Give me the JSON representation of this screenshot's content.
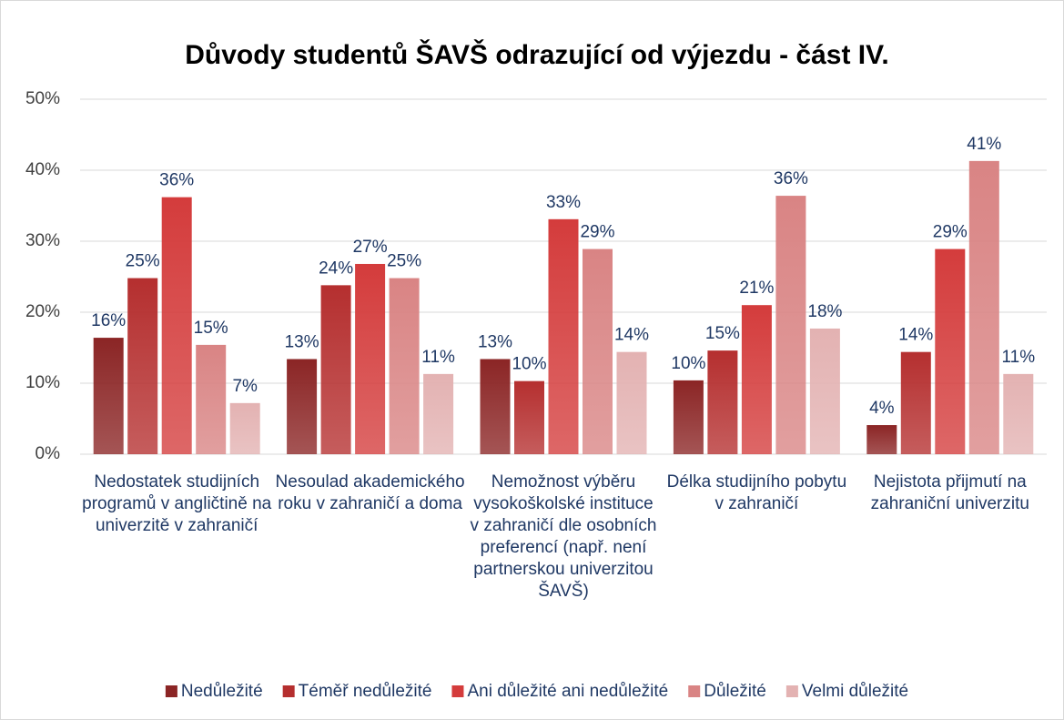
{
  "chart_data": {
    "type": "bar",
    "title": "Důvody studentů ŠAVŠ odrazující od výjezdu - část IV.",
    "categories": [
      "Nedostatek studijních programů v angličtině na univerzitě v zahraničí",
      "Nesoulad akademického roku v zahraničí a doma",
      "Nemožnost výběru vysokoškolské instituce v zahraničí dle osobních preferencí (např. není partnerskou univerzitou ŠAVŠ)",
      "Délka studijního pobytu v zahraničí",
      "Nejistota přijmutí na zahraniční univerzitu"
    ],
    "series": [
      {
        "name": "Nedůležité",
        "color": "#8b2525",
        "values": [
          16.4,
          13.4,
          13.4,
          10.4,
          4.1
        ],
        "value_labels": [
          "16%",
          "13%",
          "13%",
          "10%",
          "4%"
        ]
      },
      {
        "name": "Téměř nedůležité",
        "color": "#b52f2f",
        "values": [
          24.8,
          23.8,
          10.3,
          14.6,
          14.4
        ],
        "value_labels": [
          "25%",
          "24%",
          "10%",
          "15%",
          "14%"
        ]
      },
      {
        "name": "Ani důležité ani nedůležité",
        "color": "#d43c3c",
        "values": [
          36.2,
          26.8,
          33.1,
          21.0,
          28.9
        ],
        "value_labels": [
          "36%",
          "27%",
          "33%",
          "21%",
          "29%"
        ]
      },
      {
        "name": "Důležité",
        "color": "#d98484",
        "values": [
          15.4,
          24.8,
          28.9,
          36.4,
          41.3
        ],
        "value_labels": [
          "15%",
          "25%",
          "29%",
          "36%",
          "41%"
        ]
      },
      {
        "name": "Velmi důležité",
        "color": "#e3b2b2",
        "values": [
          7.2,
          11.3,
          14.4,
          17.7,
          11.3
        ],
        "value_labels": [
          "7%",
          "11%",
          "14%",
          "18%",
          "11%"
        ]
      }
    ],
    "ylim": [
      0,
      50
    ],
    "yticks": [
      {
        "value": 0,
        "label": "0%"
      },
      {
        "value": 10,
        "label": "10%"
      },
      {
        "value": 20,
        "label": "20%"
      },
      {
        "value": 30,
        "label": "30%"
      },
      {
        "value": 40,
        "label": "40%"
      },
      {
        "value": 50,
        "label": "50%"
      }
    ],
    "grid": true,
    "legend": "bottom"
  }
}
